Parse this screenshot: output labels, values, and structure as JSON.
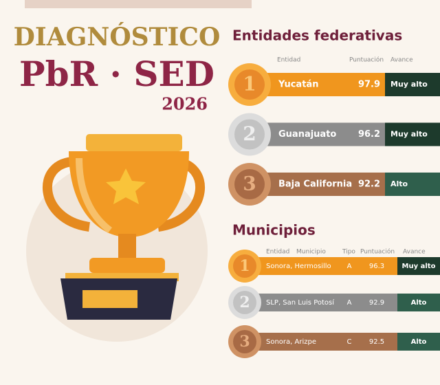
{
  "header": {
    "title": "DIAGNÓSTICO",
    "subtitle": "PbR · SED",
    "year": "2026"
  },
  "entidades": {
    "title": "Entidades federativas",
    "columns": [
      "Entidad",
      "Puntuación",
      "Avance"
    ],
    "rows": [
      {
        "rank": 1,
        "entidad": "Yucatán",
        "puntuacion": 97.9,
        "avance": "Muy alto"
      },
      {
        "rank": 2,
        "entidad": "Guanajuato",
        "puntuacion": 96.2,
        "avance": "Muy alto"
      },
      {
        "rank": 3,
        "entidad": "Baja California",
        "puntuacion": 92.2,
        "avance": "Alto"
      }
    ]
  },
  "municipios": {
    "title": "Municipios",
    "columns": [
      "Entidad",
      "Municipio",
      "Tipo",
      "Puntuación",
      "Avance"
    ],
    "rows": [
      {
        "rank": 1,
        "nombre": "Sonora, Hermosillo",
        "tipo": "A",
        "puntuacion": 96.3,
        "avance": "Muy alto"
      },
      {
        "rank": 2,
        "nombre": "SLP, San Luis Potosí",
        "tipo": "A",
        "puntuacion": 92.9,
        "avance": "Alto"
      },
      {
        "rank": 3,
        "nombre": "Sonora, Arizpe",
        "tipo": "C",
        "puntuacion": 92.5,
        "avance": "Alto"
      }
    ]
  }
}
